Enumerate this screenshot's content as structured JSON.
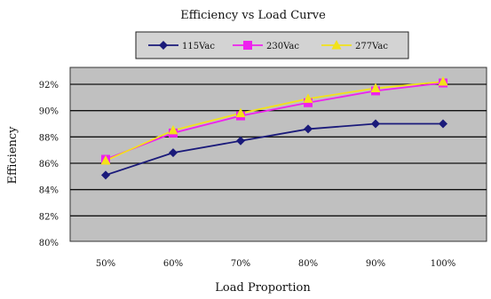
{
  "chart_data": {
    "type": "line",
    "title": "Efficiency vs Load Curve",
    "xlabel": "Load Proportion",
    "ylabel": "Efficiency",
    "categories": [
      "50%",
      "60%",
      "70%",
      "80%",
      "90%",
      "100%"
    ],
    "ylim": [
      80,
      92
    ],
    "yticks": [
      "80%",
      "82%",
      "84%",
      "86%",
      "88%",
      "90%",
      "92%"
    ],
    "grid": true,
    "legend_position": "top",
    "series": [
      {
        "name": "115Vac",
        "color": "#1a1a7a",
        "marker": "diamond",
        "values": [
          85.1,
          86.8,
          87.7,
          88.6,
          89.0,
          89.0
        ]
      },
      {
        "name": "230Vac",
        "color": "#ee22ee",
        "marker": "square",
        "values": [
          86.3,
          88.3,
          89.6,
          90.6,
          91.5,
          92.1
        ]
      },
      {
        "name": "277Vac",
        "color": "#f2e21a",
        "marker": "triangle",
        "values": [
          86.2,
          88.5,
          89.8,
          90.9,
          91.7,
          92.2
        ]
      }
    ]
  }
}
